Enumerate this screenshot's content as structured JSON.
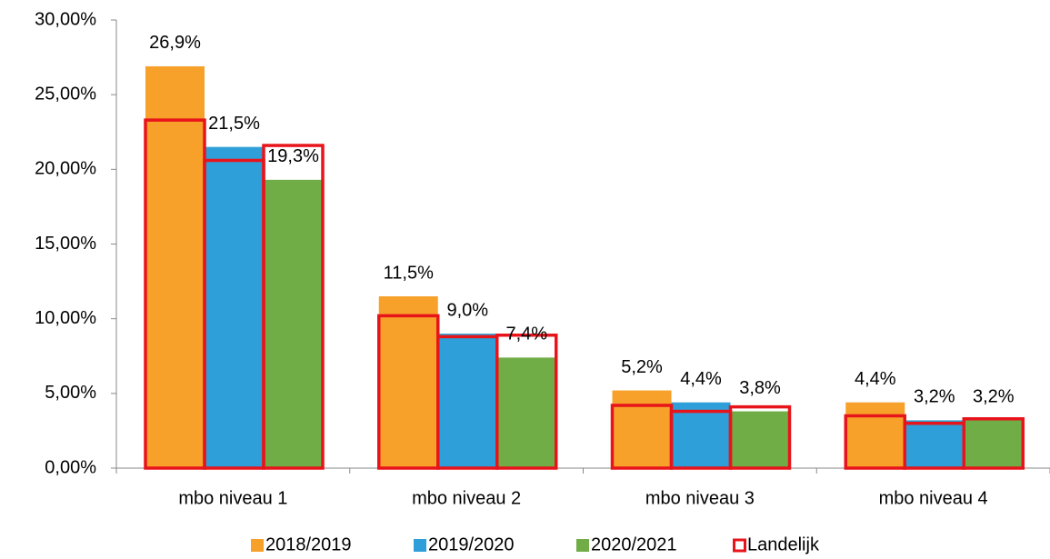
{
  "chart_data": {
    "type": "bar",
    "categories": [
      "mbo niveau 1",
      "mbo niveau 2",
      "mbo niveau 3",
      "mbo niveau 4"
    ],
    "series": [
      {
        "name": "2018/2019",
        "color": "#f7a02a",
        "values": [
          26.9,
          11.5,
          5.2,
          4.4
        ],
        "value_labels": [
          "26,9%",
          "11,5%",
          "5,2%",
          "4,4%"
        ]
      },
      {
        "name": "2019/2020",
        "color": "#2e9fd8",
        "values": [
          21.5,
          9.0,
          4.4,
          3.2
        ],
        "value_labels": [
          "21,5%",
          "9,0%",
          "4,4%",
          "3,2%"
        ]
      },
      {
        "name": "2020/2021",
        "color": "#70ad47",
        "values": [
          19.3,
          7.4,
          3.8,
          3.2
        ],
        "value_labels": [
          "19,3%",
          "7,4%",
          "3,8%",
          "3,2%"
        ]
      },
      {
        "name": "Landelijk",
        "color": "#e8141b",
        "values": [
          [
            23.3,
            20.6,
            21.6
          ],
          [
            10.2,
            8.8,
            8.9
          ],
          [
            4.2,
            3.8,
            4.1
          ],
          [
            3.5,
            3.0,
            3.3
          ]
        ]
      }
    ],
    "ylim": [
      0,
      30
    ],
    "yticks": [
      {
        "value": 0,
        "label": "0,00%"
      },
      {
        "value": 5,
        "label": "5,00%"
      },
      {
        "value": 10,
        "label": "10,00%"
      },
      {
        "value": 15,
        "label": "15,00%"
      },
      {
        "value": 20,
        "label": "20,00%"
      },
      {
        "value": 25,
        "label": "25,00%"
      },
      {
        "value": 30,
        "label": "30,00%"
      }
    ],
    "legend": "bottom"
  }
}
